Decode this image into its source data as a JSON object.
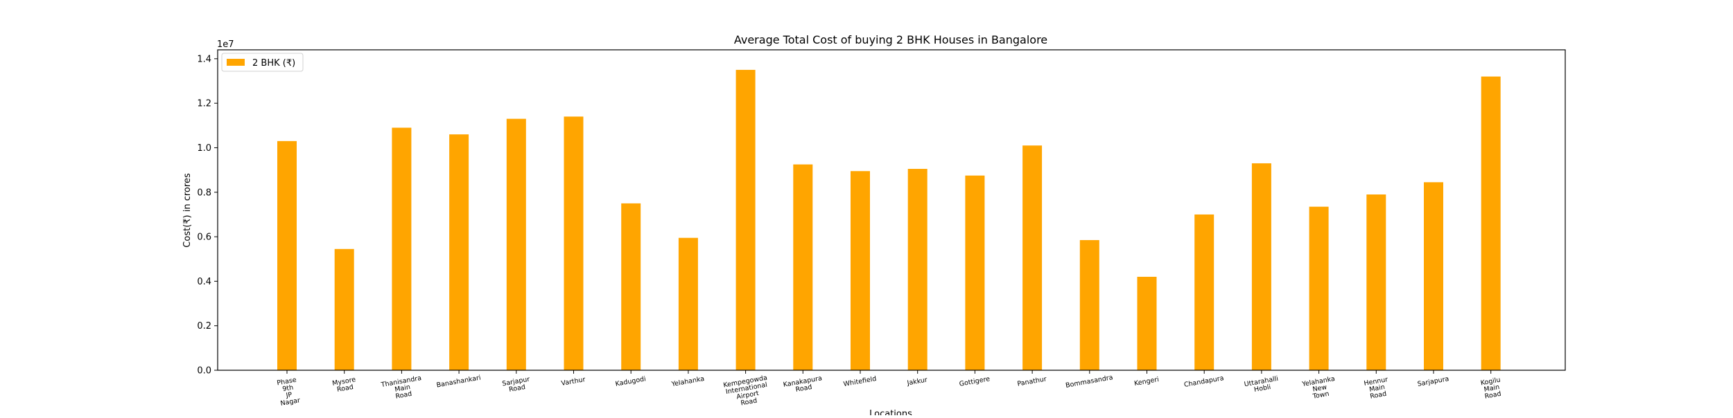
{
  "chart_data": {
    "type": "bar",
    "title": "Average Total Cost of buying 2 BHK Houses in Bangalore",
    "xlabel": "Locations",
    "ylabel": "Cost(₹) in crores",
    "y_offset_label": "1e7",
    "ylim": [
      0,
      14400000
    ],
    "yticks": [
      "0.0",
      "0.2",
      "0.4",
      "0.6",
      "0.8",
      "1.0",
      "1.2",
      "1.4"
    ],
    "ytick_values": [
      0,
      2000000,
      4000000,
      6000000,
      8000000,
      10000000,
      12000000,
      14000000
    ],
    "grid": false,
    "legend_position": "top-left",
    "categories": [
      [
        "Phase",
        "9th",
        "JP",
        "Nagar"
      ],
      [
        "Mysore",
        "Road"
      ],
      [
        "Thanisandra",
        "Main",
        "Road"
      ],
      [
        "Banashankari"
      ],
      [
        "Sarjapur",
        "Road"
      ],
      [
        "Varthur"
      ],
      [
        "Kadugodi"
      ],
      [
        "Yelahanka"
      ],
      [
        "Kempegowda",
        "International",
        "Airport",
        "Road"
      ],
      [
        "Kanakapura",
        "Road"
      ],
      [
        "Whitefield"
      ],
      [
        "Jakkur"
      ],
      [
        "Gottigere"
      ],
      [
        "Panathur"
      ],
      [
        "Bommasandra"
      ],
      [
        "Kengeri"
      ],
      [
        "Chandapura"
      ],
      [
        "Uttarahalli",
        "Hobli"
      ],
      [
        "Yelahanka",
        "New",
        "Town"
      ],
      [
        "Hennur",
        "Main",
        "Road"
      ],
      [
        "Sarjapura"
      ],
      [
        "Kogilu",
        "Main",
        "Road"
      ]
    ],
    "series": [
      {
        "name": "2 BHK (₹)",
        "color": "#ffa500",
        "values": [
          10300000,
          5450000,
          10900000,
          10600000,
          11300000,
          11400000,
          7500000,
          5950000,
          13500000,
          9250000,
          8950000,
          9050000,
          8750000,
          10100000,
          5850000,
          4200000,
          7000000,
          9300000,
          7350000,
          7900000,
          8450000,
          13200000
        ]
      }
    ]
  }
}
